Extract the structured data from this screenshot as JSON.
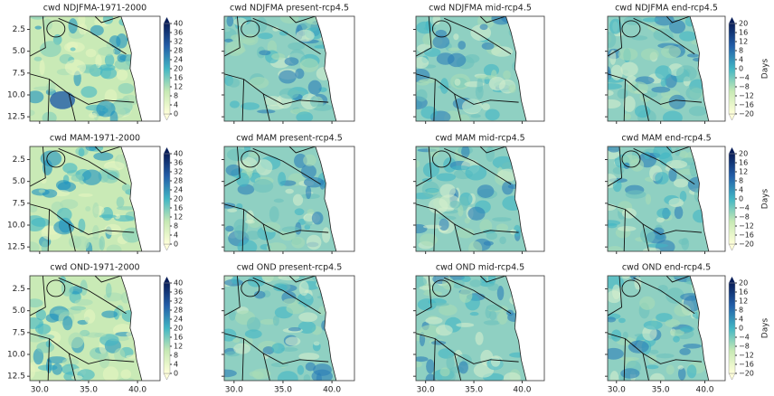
{
  "figure": {
    "rows": [
      [
        "cwd NDJFMA-1971-2000",
        "cwd NDJFMA present-rcp4.5",
        "cwd NDJFMA mid-rcp4.5",
        "cwd NDJFMA end-rcp4.5"
      ],
      [
        "cwd MAM-1971-2000",
        "cwd MAM present-rcp4.5",
        "cwd MAM mid-rcp4.5",
        "cwd MAM end-rcp4.5"
      ],
      [
        "cwd OND-1971-2000",
        "cwd OND present-rcp4.5",
        "cwd OND mid-rcp4.5",
        "cwd OND end-rcp4.5"
      ]
    ],
    "xlim": [
      29,
      42.3
    ],
    "ylim": [
      1,
      13
    ],
    "xticks": [
      {
        "value": 30,
        "label": "30.0"
      },
      {
        "value": 35,
        "label": "35.0"
      },
      {
        "value": 40,
        "label": "40.0"
      }
    ],
    "yticks": [
      2.5,
      {
        "value": 5,
        "label": "5.0"
      },
      7.5,
      {
        "value": 10,
        "label": "10.0"
      },
      12.5
    ],
    "colorbar_absolute": {
      "lim": [
        0,
        40
      ],
      "ticks": [
        0,
        4,
        8,
        12,
        16,
        20,
        24,
        28,
        32,
        36,
        40
      ]
    },
    "colorbar_change": {
      "label": "Days",
      "lim": [
        -20,
        20
      ],
      "ticks": [
        {
          "value": -20,
          "label": "−20"
        },
        {
          "value": -16,
          "label": "−16"
        },
        {
          "value": -12,
          "label": "−12"
        },
        {
          "value": -8,
          "label": "−8"
        },
        {
          "value": -4,
          "label": "−4"
        },
        0,
        4,
        8,
        12,
        16,
        20
      ]
    }
  }
}
